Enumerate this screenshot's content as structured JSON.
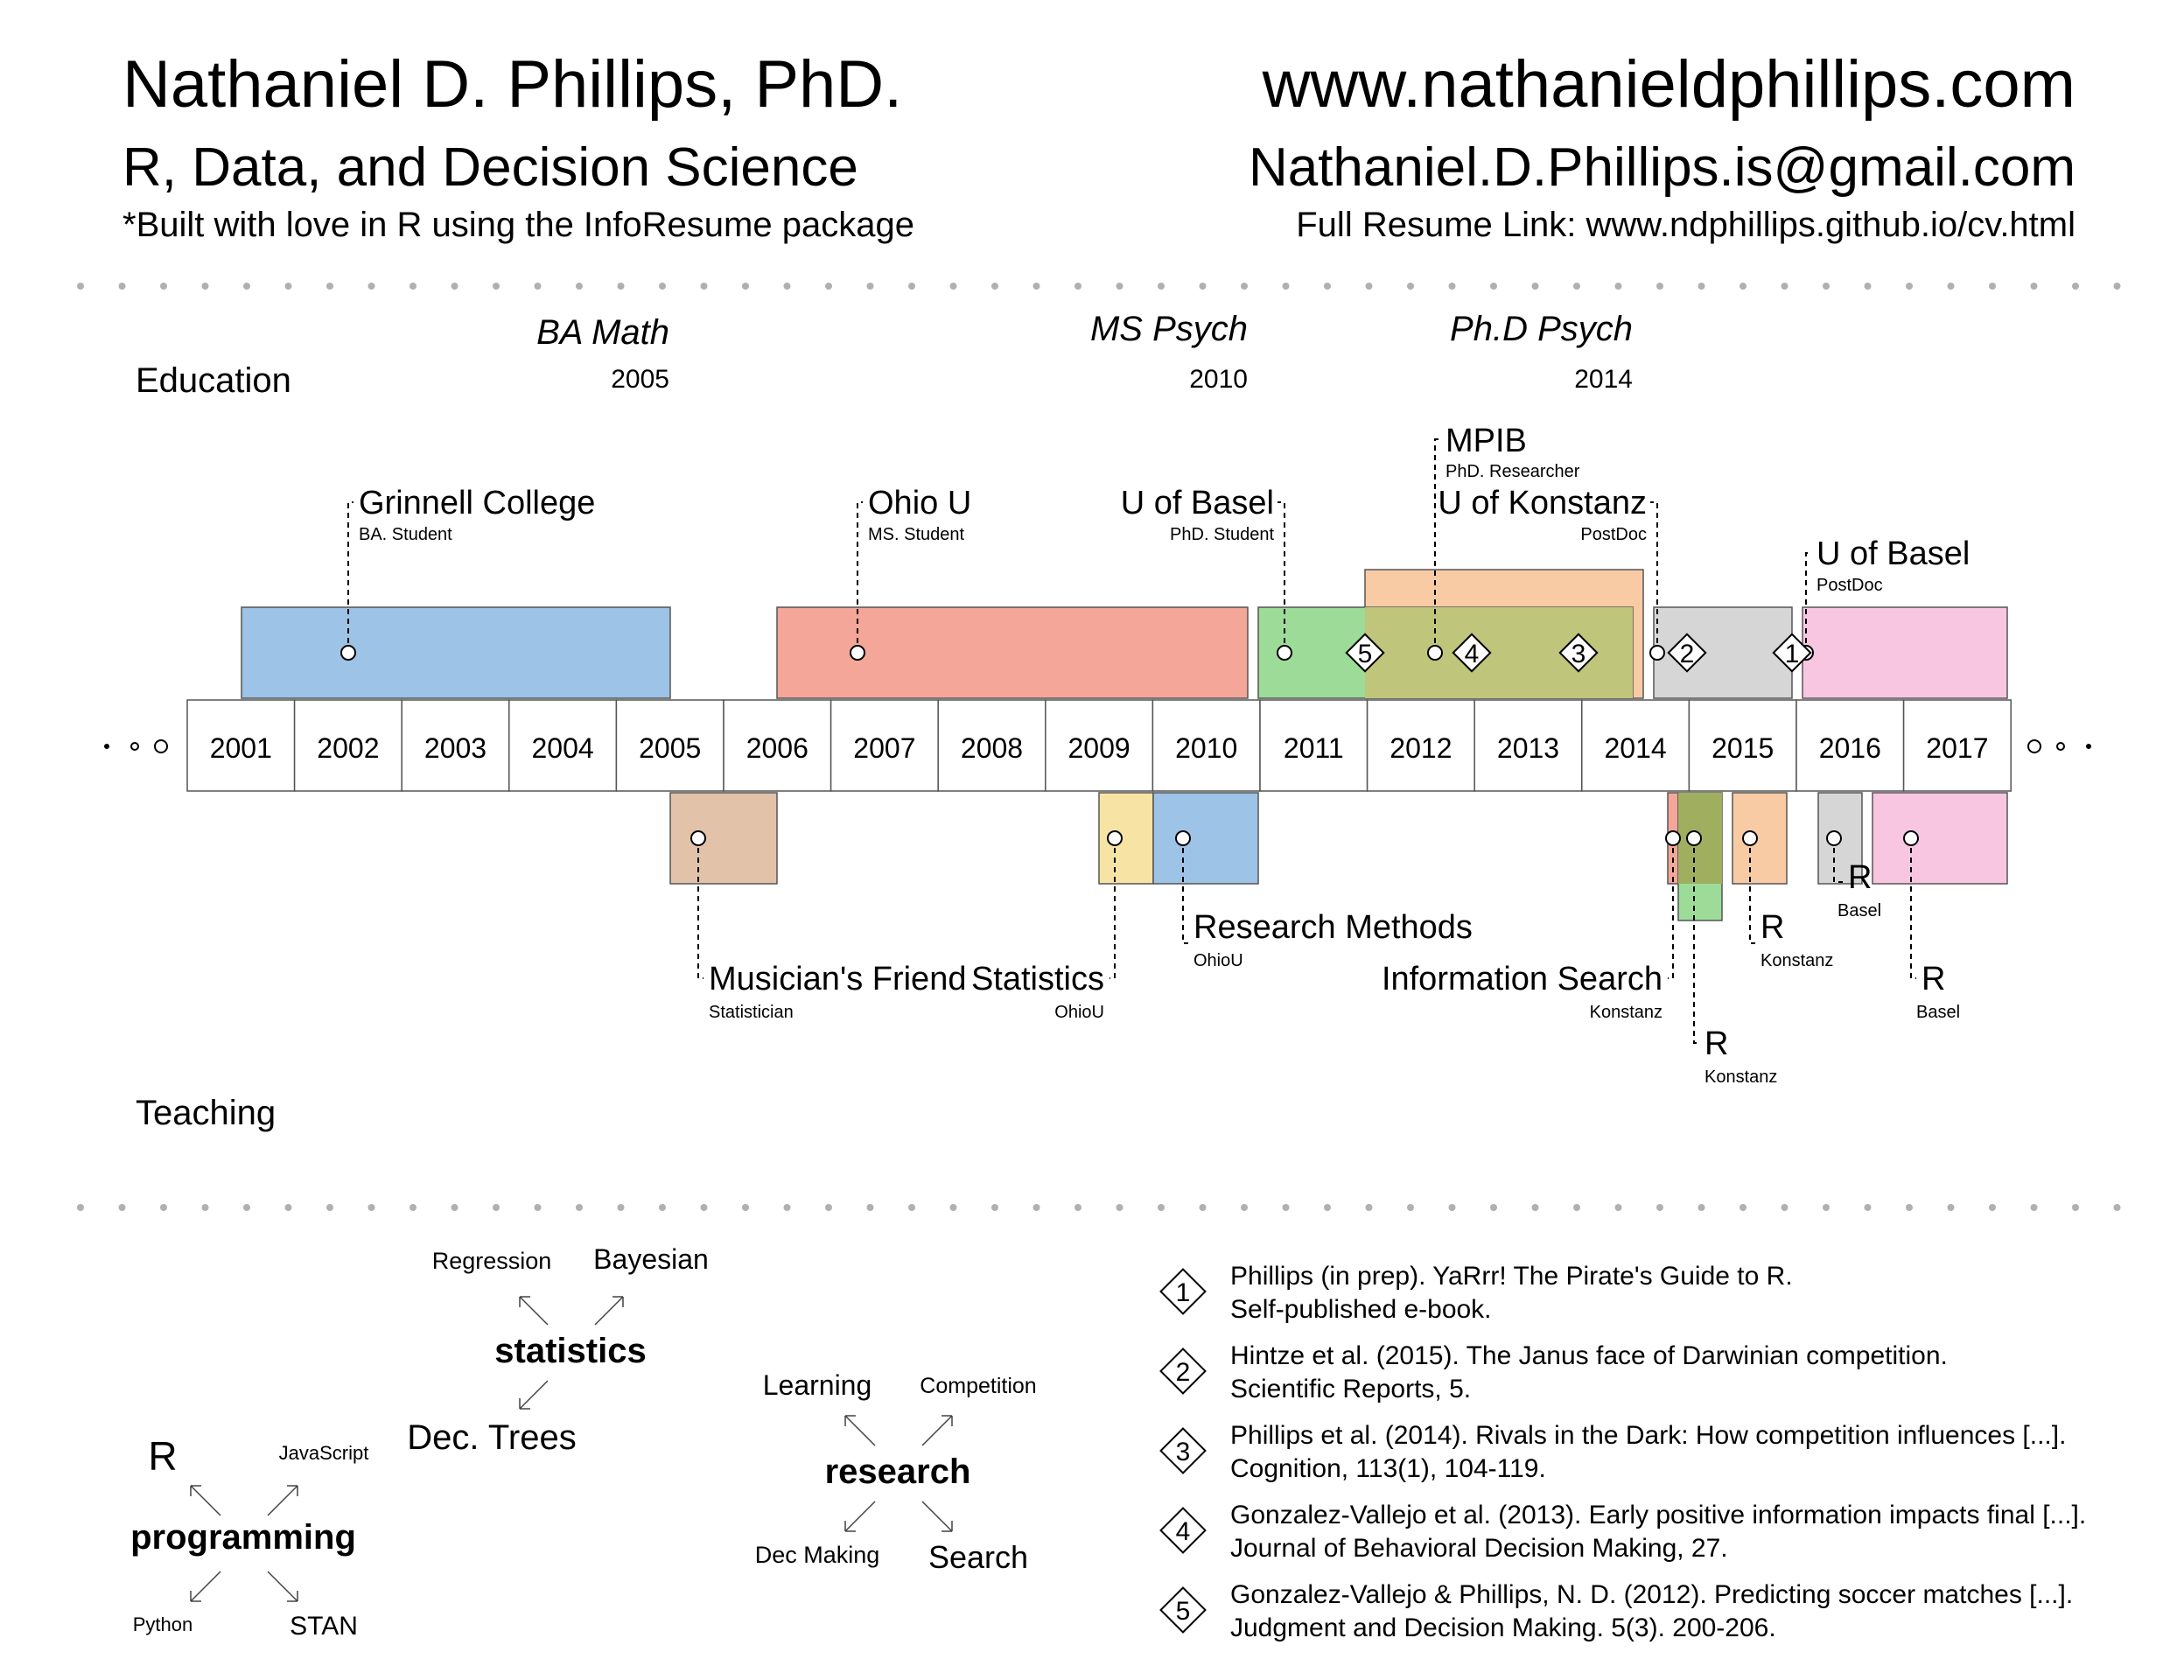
{
  "header": {
    "name": "Nathaniel D. Phillips, PhD.",
    "tagline": "R, Data, and Decision Science",
    "built_with": "*Built with love in R using the InfoResume package",
    "website": "www.nathanieldphillips.com",
    "email": "Nathaniel.D.Phillips.is@gmail.com",
    "resume_link": "Full Resume Link: www.ndphillips.github.io/cv.html"
  },
  "sections": {
    "education": "Education",
    "teaching": "Teaching"
  },
  "degrees": [
    {
      "title": "BA Math",
      "year": "2005"
    },
    {
      "title": "MS Psych",
      "year": "2010"
    },
    {
      "title": "Ph.D Psych",
      "year": "2014"
    }
  ],
  "years": [
    "2001",
    "2002",
    "2003",
    "2004",
    "2005",
    "2006",
    "2007",
    "2008",
    "2009",
    "2010",
    "2011",
    "2012",
    "2013",
    "2014",
    "2015",
    "2016",
    "2017"
  ],
  "education_events": [
    {
      "name": "Grinnell College",
      "role": "BA. Student",
      "start": 2001.0,
      "end": 2005.0,
      "color": "#9dc3e6"
    },
    {
      "name": "Ohio U",
      "role": "MS. Student",
      "start": 2006.0,
      "end": 2010.4,
      "color": "#f4a698"
    },
    {
      "name": "U of Basel",
      "role": "PhD. Student",
      "start": 2010.5,
      "end": 2014.0,
      "color": "#9cdc98"
    },
    {
      "name": "MPIB",
      "role": "PhD. Researcher",
      "start": 2011.0,
      "end": 2013.6,
      "color": "#f8cba5"
    },
    {
      "name": "U of Konstanz",
      "role": "PostDoc",
      "start": 2014.2,
      "end": 2015.5,
      "color": "#d6d6d6"
    },
    {
      "name": "U of Basel",
      "role": "PostDoc",
      "start": 2015.6,
      "end": 2017.5,
      "color": "#f9c6e2"
    }
  ],
  "teaching_events": [
    {
      "name": "Musician's Friend",
      "role": "Statistician",
      "start": 2005.0,
      "end": 2006.0,
      "color": "#e2c2a8"
    },
    {
      "name": "Statistics",
      "role": "OhioU",
      "start": 2009.0,
      "end": 2009.5,
      "color": "#f7e3a3"
    },
    {
      "name": "Research Methods",
      "role": "OhioU",
      "start": 2009.5,
      "end": 2010.5,
      "color": "#9dc3e6"
    },
    {
      "name": "Information Search",
      "role": "Konstanz",
      "start": 2014.3,
      "end": 2014.4,
      "color": "#f4a698"
    },
    {
      "name": "R",
      "role": "Konstanz",
      "start": 2014.4,
      "end": 2014.8,
      "color": "#9cdc98"
    },
    {
      "name": "R",
      "role": "Konstanz",
      "start": 2015.0,
      "end": 2015.4,
      "color": "#f8cba5"
    },
    {
      "name": "R",
      "role": "Basel",
      "start": 2015.7,
      "end": 2016.1,
      "color": "#d6d6d6"
    },
    {
      "name": "R",
      "role": "Basel",
      "start": 2016.2,
      "end": 2017.5,
      "color": "#f9c6e2"
    }
  ],
  "publication_markers": [
    "5",
    "4",
    "3",
    "2",
    "1"
  ],
  "skills": {
    "statistics": {
      "hub": "statistics",
      "items": [
        "Regression",
        "Bayesian",
        "Dec. Trees"
      ]
    },
    "programming": {
      "hub": "programming",
      "items": [
        "R",
        "JavaScript",
        "Python",
        "STAN"
      ]
    },
    "research": {
      "hub": "research",
      "items": [
        "Learning",
        "Competition",
        "Dec Making",
        "Search"
      ]
    }
  },
  "publications": [
    {
      "num": "1",
      "line1": "Phillips (in prep). YaRrr! The Pirate's Guide to R.",
      "line2": "Self-published e-book."
    },
    {
      "num": "2",
      "line1": "Hintze et al. (2015). The Janus face of Darwinian competition.",
      "line2": "Scientific Reports, 5."
    },
    {
      "num": "3",
      "line1": "Phillips et al. (2014). Rivals in the Dark: How competition influences [...].",
      "line2": "Cognition, 113(1), 104-119."
    },
    {
      "num": "4",
      "line1": "Gonzalez-Vallejo et al. (2013). Early positive information impacts final [...].",
      "line2": "Journal of Behavioral Decision Making, 27."
    },
    {
      "num": "5",
      "line1": "Gonzalez-Vallejo & Phillips, N. D. (2012). Predicting soccer matches [...].",
      "line2": "Judgment and Decision Making. 5(3). 200-206."
    }
  ]
}
